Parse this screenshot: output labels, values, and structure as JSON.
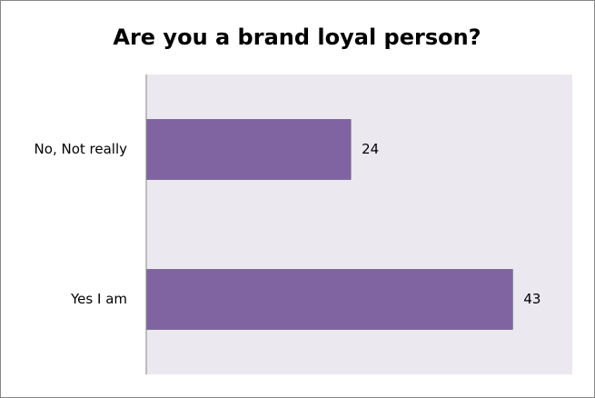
{
  "chart_data": {
    "type": "bar",
    "orientation": "horizontal",
    "title": "Are you a brand loyal person?",
    "categories": [
      "No, Not really",
      "Yes I am"
    ],
    "values": [
      24,
      43
    ],
    "color": "#8064a2",
    "xlim": [
      0,
      50
    ],
    "plot_background": "#ebe8f0"
  }
}
